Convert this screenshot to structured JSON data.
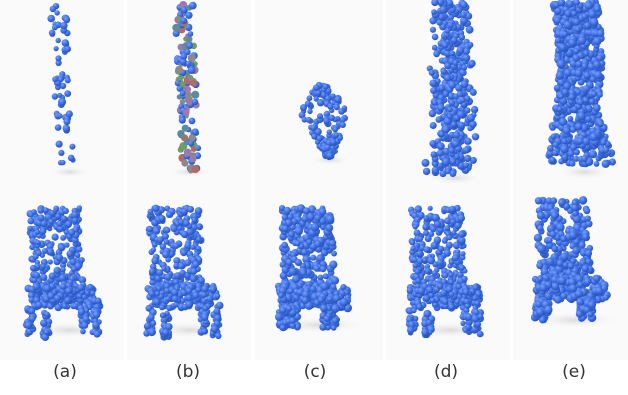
{
  "figure": {
    "background": "#ffffff",
    "point_color": "#3d6fe0",
    "point_shade": "#2a52b8",
    "multicolor_points": [
      "#8a8a8a",
      "#6b9e6b",
      "#b06a6a",
      "#9a7ab0",
      "#5e8a9e"
    ],
    "columns": [
      {
        "caption": "(a)",
        "top_shape": "sparse-vertical-column-points",
        "bottom_shape": "chair-point-cloud"
      },
      {
        "caption": "(b)",
        "top_shape": "multicolor-vertical-column-points",
        "bottom_shape": "chair-point-cloud"
      },
      {
        "caption": "(c)",
        "top_shape": "small-cluster-points",
        "bottom_shape": "blob-chair-point-cloud"
      },
      {
        "caption": "(d)",
        "top_shape": "dense-vertical-column-points",
        "bottom_shape": "chair-point-cloud"
      },
      {
        "caption": "(e)",
        "top_shape": "solid-vertical-column",
        "bottom_shape": "blob-chair-point-cloud"
      }
    ]
  }
}
